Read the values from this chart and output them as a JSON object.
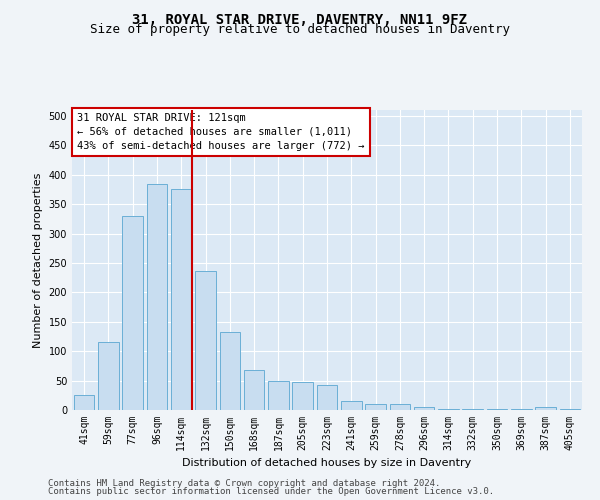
{
  "title": "31, ROYAL STAR DRIVE, DAVENTRY, NN11 9FZ",
  "subtitle": "Size of property relative to detached houses in Daventry",
  "xlabel": "Distribution of detached houses by size in Daventry",
  "ylabel": "Number of detached properties",
  "categories": [
    "41sqm",
    "59sqm",
    "77sqm",
    "96sqm",
    "114sqm",
    "132sqm",
    "150sqm",
    "168sqm",
    "187sqm",
    "205sqm",
    "223sqm",
    "241sqm",
    "259sqm",
    "278sqm",
    "296sqm",
    "314sqm",
    "332sqm",
    "350sqm",
    "369sqm",
    "387sqm",
    "405sqm"
  ],
  "values": [
    25,
    115,
    330,
    385,
    375,
    237,
    132,
    68,
    50,
    47,
    42,
    15,
    10,
    10,
    5,
    2,
    2,
    2,
    2,
    5,
    2
  ],
  "bar_color": "#c8ddf0",
  "bar_edge_color": "#6aafd6",
  "property_line_color": "#cc0000",
  "property_line_index": 4,
  "annotation_text": "31 ROYAL STAR DRIVE: 121sqm\n← 56% of detached houses are smaller (1,011)\n43% of semi-detached houses are larger (772) →",
  "annotation_box_facecolor": "#ffffff",
  "annotation_box_edgecolor": "#cc0000",
  "ylim": [
    0,
    510
  ],
  "yticks": [
    0,
    50,
    100,
    150,
    200,
    250,
    300,
    350,
    400,
    450,
    500
  ],
  "bg_color": "#dce9f5",
  "fig_facecolor": "#f0f4f8",
  "footer_line1": "Contains HM Land Registry data © Crown copyright and database right 2024.",
  "footer_line2": "Contains public sector information licensed under the Open Government Licence v3.0.",
  "title_fontsize": 10,
  "subtitle_fontsize": 9,
  "axis_label_fontsize": 8,
  "tick_fontsize": 7,
  "annotation_fontsize": 7.5,
  "footer_fontsize": 6.5
}
